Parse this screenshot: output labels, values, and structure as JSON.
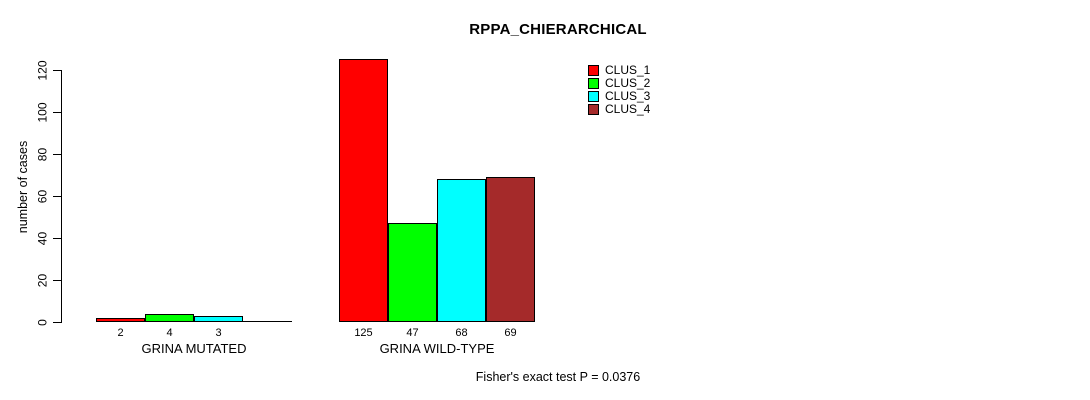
{
  "title": "RPPA_CHIERARCHICAL",
  "ylabel": "number of cases",
  "footer": "Fisher's exact test P = 0.0376",
  "colors": {
    "clus_1": "#FF0000",
    "clus_2": "#00FF00",
    "clus_3": "#00FFFF",
    "clus_4": "#A52A2A",
    "axis": "#000000",
    "background": "#FFFFFF"
  },
  "legend": [
    {
      "label": "CLUS_1",
      "color": "#FF0000"
    },
    {
      "label": "CLUS_2",
      "color": "#00FF00"
    },
    {
      "label": "CLUS_3",
      "color": "#00FFFF"
    },
    {
      "label": "CLUS_4",
      "color": "#A52A2A"
    }
  ],
  "chart_data": {
    "type": "bar",
    "grouped": true,
    "title": "RPPA_CHIERARCHICAL",
    "xlabel": "",
    "ylabel": "number of cases",
    "categories": [
      "GRINA MUTATED",
      "GRINA WILD-TYPE"
    ],
    "series": [
      {
        "name": "CLUS_1",
        "color": "#FF0000",
        "values": [
          2,
          125
        ]
      },
      {
        "name": "CLUS_2",
        "color": "#00FF00",
        "values": [
          4,
          47
        ]
      },
      {
        "name": "CLUS_3",
        "color": "#00FFFF",
        "values": [
          3,
          68
        ]
      },
      {
        "name": "CLUS_4",
        "color": "#A52A2A",
        "values": [
          0,
          69
        ]
      }
    ],
    "bar_value_labels": [
      [
        "2",
        "4",
        "3",
        ""
      ],
      [
        "125",
        "47",
        "68",
        "69"
      ]
    ],
    "ylim": [
      0,
      120
    ],
    "yticks": [
      0,
      20,
      40,
      60,
      80,
      100,
      120
    ],
    "grid": false,
    "legend_position": "top-right",
    "annotation": "Fisher's exact test P = 0.0376"
  }
}
